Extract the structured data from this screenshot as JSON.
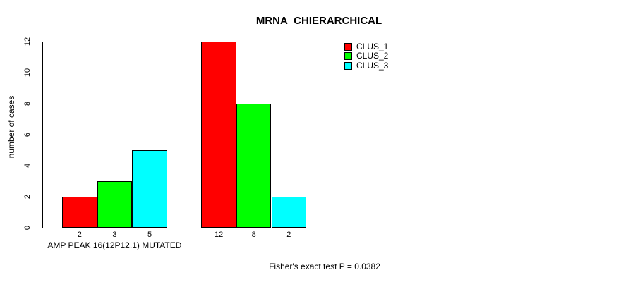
{
  "chart_data": {
    "type": "bar",
    "title": "MRNA_CHIERARCHICAL",
    "ylabel": "number of cases",
    "xlabel": "",
    "ylim": [
      0,
      12
    ],
    "yticks": [
      0,
      2,
      4,
      6,
      8,
      10,
      12
    ],
    "grid": false,
    "legend_position": "top-right",
    "series": [
      {
        "name": "CLUS_1",
        "color": "#ff0000",
        "values": [
          2,
          12
        ]
      },
      {
        "name": "CLUS_2",
        "color": "#00ff00",
        "values": [
          3,
          8
        ]
      },
      {
        "name": "CLUS_3",
        "color": "#00ffff",
        "values": [
          5,
          2
        ]
      }
    ],
    "groups": [
      {
        "label": "AMP PEAK 16(12P12.1) MUTATED"
      },
      {
        "label": ""
      }
    ],
    "bar_tick_labels": [
      [
        "2",
        "3",
        "5"
      ],
      [
        "12",
        "8",
        "2"
      ]
    ],
    "footnote": "Fisher's exact test P = 0.0382"
  }
}
